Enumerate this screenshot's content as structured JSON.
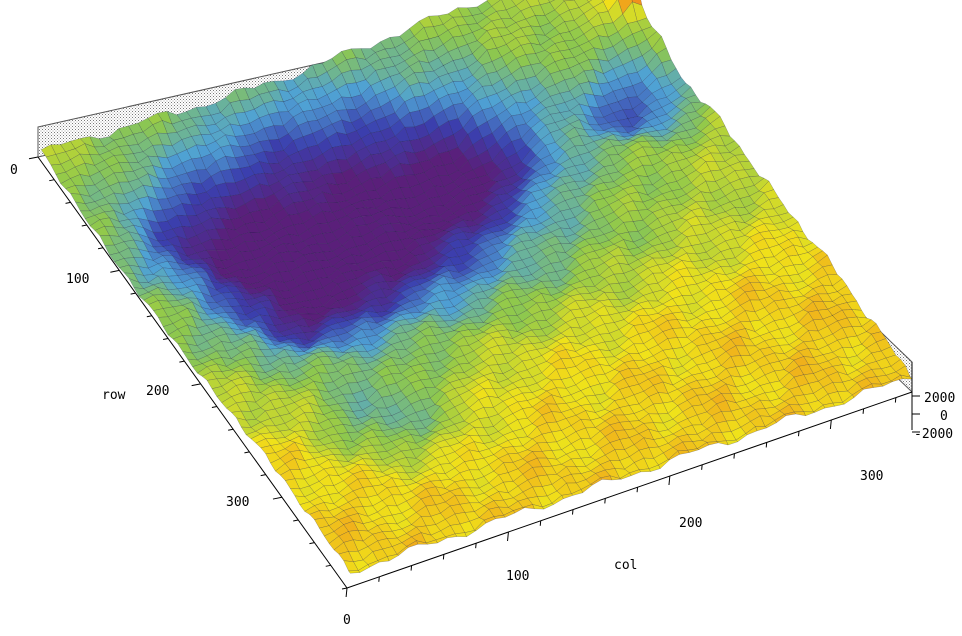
{
  "chart_data": {
    "type": "surface",
    "title": "",
    "xlabel": "col",
    "ylabel": "row",
    "zlabel": "",
    "xlim": [
      0,
      350
    ],
    "ylim": [
      0,
      380
    ],
    "zlim": [
      -2000,
      2000
    ],
    "x_ticks": [
      "0",
      "100",
      "200",
      "300"
    ],
    "y_ticks": [
      "0",
      "100",
      "200",
      "300"
    ],
    "z_ticks": [
      "2000",
      "0",
      "-2000"
    ],
    "colormap": [
      "#5a1f7a",
      "#3b3fae",
      "#4fa2d4",
      "#8ec84d",
      "#f0e21a",
      "#f08c1c",
      "#d42a18"
    ],
    "grid": false,
    "legend": "none",
    "surface_features": {
      "cols": 350,
      "rows": 380,
      "base_elevation": 400,
      "main_basin": {
        "col": 140,
        "row": 100,
        "depth": -1800
      },
      "secondary_basins": [
        {
          "col": 60,
          "row": 80,
          "depth": -900
        },
        {
          "col": 80,
          "row": 160,
          "depth": -900
        },
        {
          "col": 225,
          "row": 95,
          "depth": -1100
        },
        {
          "col": 320,
          "row": 100,
          "depth": -1400
        },
        {
          "col": 80,
          "row": 270,
          "depth": -700
        }
      ],
      "peaks": [
        {
          "col": 340,
          "row": 0,
          "height": 2000
        },
        {
          "col": 345,
          "row": 40,
          "height": 2100
        }
      ]
    }
  }
}
